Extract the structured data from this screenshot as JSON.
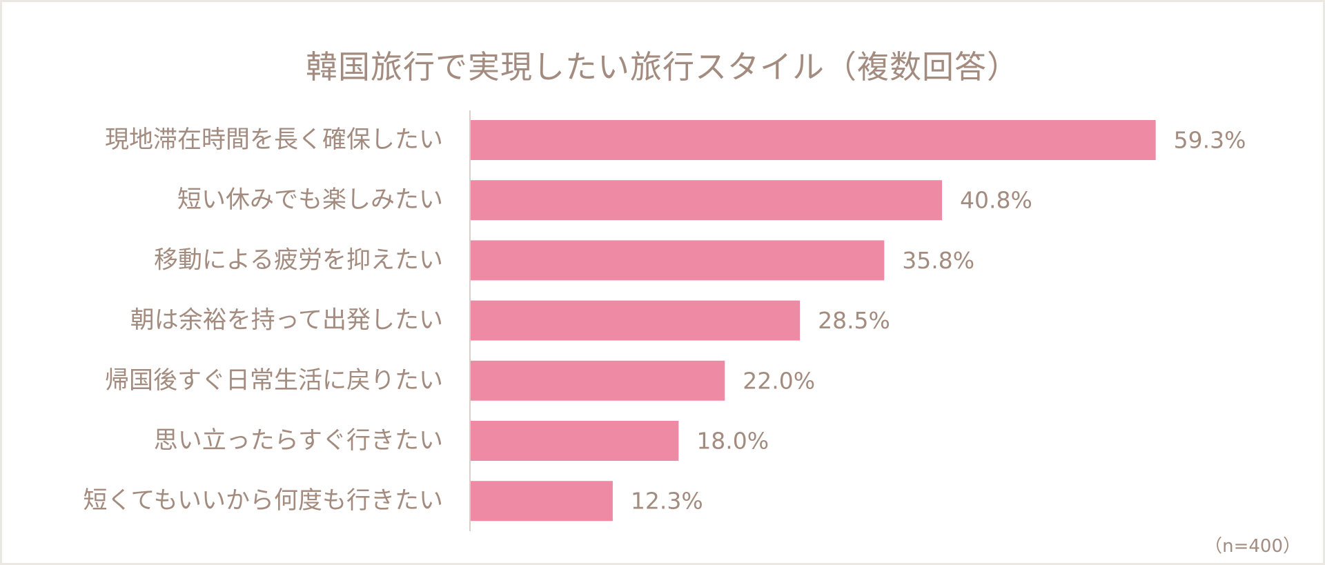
{
  "chart_data": {
    "type": "bar",
    "orientation": "horizontal",
    "title": "韓国旅行で実現したい旅行スタイル（複数回答）",
    "categories": [
      "現地滞在時間を長く確保したい",
      "短い休みでも楽しみたい",
      "移動による疲労を抑えたい",
      "朝は余裕を持って出発したい",
      "帰国後すぐ日常生活に戻りたい",
      "思い立ったらすぐ行きたい",
      "短くてもいいから何度も行きたい"
    ],
    "values": [
      59.3,
      40.8,
      35.8,
      28.5,
      22.0,
      18.0,
      12.3
    ],
    "value_labels": [
      "59.3%",
      "40.8%",
      "35.8%",
      "28.5%",
      "22.0%",
      "18.0%",
      "12.3%"
    ],
    "unit": "%",
    "xlim": [
      0,
      66
    ],
    "grid": false,
    "note": "（n=400）",
    "colors": {
      "bar": "#ef8aa5",
      "text": "#a38c7f",
      "axis": "#d6d0ca",
      "background": "#ffffff",
      "border": "#ebe7e2"
    }
  }
}
